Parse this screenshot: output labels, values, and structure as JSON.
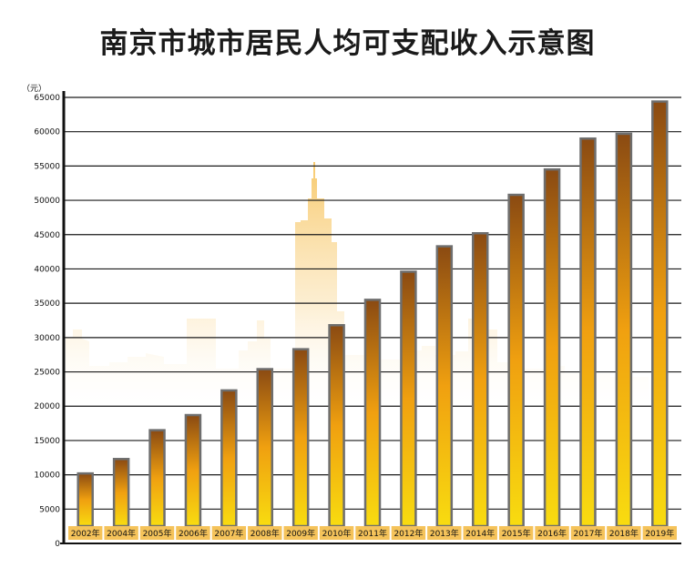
{
  "chart_data": {
    "type": "bar",
    "title": "南京市城市居民人均可支配收入示意图",
    "unit_label": "（元）",
    "categories": [
      "2002年",
      "2004年",
      "2005年",
      "2006年",
      "2007年",
      "2008年",
      "2009年",
      "2010年",
      "2011年",
      "2012年",
      "2013年",
      "2014年",
      "2015年",
      "2016年",
      "2017年",
      "2018年",
      "2019年"
    ],
    "values": [
      10200,
      12300,
      16500,
      18700,
      22300,
      25400,
      28300,
      31800,
      35500,
      39600,
      43300,
      45200,
      50800,
      54500,
      59000,
      59700,
      64400
    ],
    "ylim": [
      0,
      65000
    ],
    "yticks": [
      0,
      5000,
      10000,
      15000,
      20000,
      25000,
      30000,
      35000,
      40000,
      45000,
      50000,
      55000,
      60000,
      65000
    ],
    "grid": true,
    "colors": {
      "bar_top": "#8a4a12",
      "bar_mid": "#f0a010",
      "bar_bottom": "#f8dc10",
      "bar_edge": "#6e6e6e",
      "label_bg": "#f5c35a",
      "skyline": "#f7c766"
    }
  }
}
